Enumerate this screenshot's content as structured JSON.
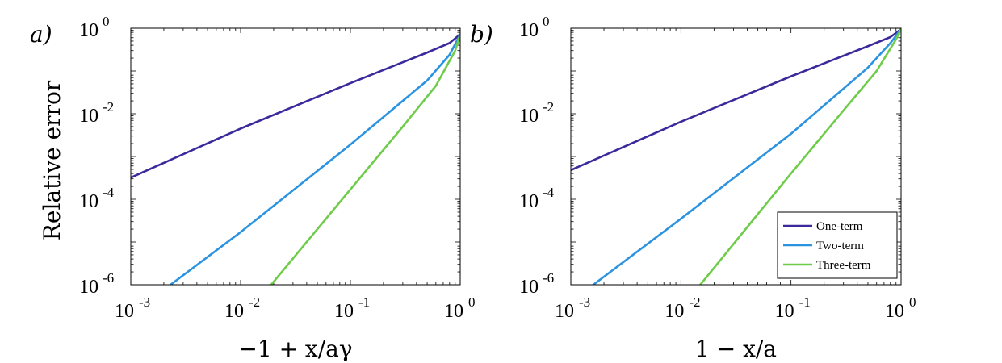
{
  "chart_data": [
    {
      "type": "line",
      "panel_label": "a)",
      "xlabel": "−1 + x/aγ",
      "ylabel": "Relative error",
      "x_scale": "log",
      "y_scale": "log",
      "xlim": [
        0.001,
        1
      ],
      "ylim": [
        1e-06,
        1
      ],
      "x_ticks": [
        {
          "base": "10",
          "exp": "-3",
          "value": 0.001
        },
        {
          "base": "10",
          "exp": "-2",
          "value": 0.01
        },
        {
          "base": "10",
          "exp": "-1",
          "value": 0.1
        },
        {
          "base": "10",
          "exp": "0",
          "value": 1
        }
      ],
      "y_ticks": [
        {
          "base": "10",
          "exp": "-6",
          "value": 1e-06
        },
        {
          "base": "10",
          "exp": "-4",
          "value": 0.0001
        },
        {
          "base": "10",
          "exp": "-2",
          "value": 0.01
        },
        {
          "base": "10",
          "exp": "0",
          "value": 1
        }
      ],
      "legend": false,
      "series": [
        {
          "name": "One-term",
          "color": "#3a2a9c",
          "x": [
            0.001,
            0.01,
            0.1,
            0.5,
            0.8,
            1.0
          ],
          "y": [
            0.00032,
            0.0045,
            0.052,
            0.27,
            0.45,
            0.72
          ]
        },
        {
          "name": "Two-term",
          "color": "#2b93e0",
          "x": [
            0.0023,
            0.01,
            0.1,
            0.5,
            0.8,
            1.0
          ],
          "y": [
            1e-06,
            1.7e-05,
            0.0019,
            0.06,
            0.24,
            0.72
          ]
        },
        {
          "name": "Three-term",
          "color": "#6fcc4a",
          "x": [
            0.019,
            0.05,
            0.1,
            0.3,
            0.6,
            0.9,
            1.0
          ],
          "y": [
            1e-06,
            2e-05,
            0.00017,
            0.005,
            0.045,
            0.3,
            0.72
          ]
        }
      ]
    },
    {
      "type": "line",
      "panel_label": "b)",
      "xlabel": "1 − x/a",
      "ylabel": "",
      "x_scale": "log",
      "y_scale": "log",
      "xlim": [
        0.001,
        1
      ],
      "ylim": [
        1e-06,
        1
      ],
      "x_ticks": [
        {
          "base": "10",
          "exp": "-3",
          "value": 0.001
        },
        {
          "base": "10",
          "exp": "-2",
          "value": 0.01
        },
        {
          "base": "10",
          "exp": "-1",
          "value": 0.1
        },
        {
          "base": "10",
          "exp": "0",
          "value": 1
        }
      ],
      "y_ticks": [
        {
          "base": "10",
          "exp": "-6",
          "value": 1e-06
        },
        {
          "base": "10",
          "exp": "-4",
          "value": 0.0001
        },
        {
          "base": "10",
          "exp": "-2",
          "value": 0.01
        },
        {
          "base": "10",
          "exp": "0",
          "value": 1
        }
      ],
      "legend": true,
      "legend_position": "bottom-right",
      "series": [
        {
          "name": "One-term",
          "color": "#3a2a9c",
          "x": [
            0.001,
            0.01,
            0.1,
            0.5,
            0.8,
            1.0
          ],
          "y": [
            0.00048,
            0.0065,
            0.075,
            0.38,
            0.62,
            0.95
          ]
        },
        {
          "name": "Two-term",
          "color": "#2b93e0",
          "x": [
            0.0016,
            0.01,
            0.1,
            0.5,
            0.8,
            1.0
          ],
          "y": [
            1e-06,
            3.5e-05,
            0.0034,
            0.12,
            0.45,
            0.95
          ]
        },
        {
          "name": "Three-term",
          "color": "#6fcc4a",
          "x": [
            0.015,
            0.05,
            0.1,
            0.3,
            0.6,
            0.9,
            1.0
          ],
          "y": [
            1e-06,
            4.5e-05,
            0.0004,
            0.012,
            0.1,
            0.55,
            0.95
          ]
        }
      ]
    }
  ]
}
